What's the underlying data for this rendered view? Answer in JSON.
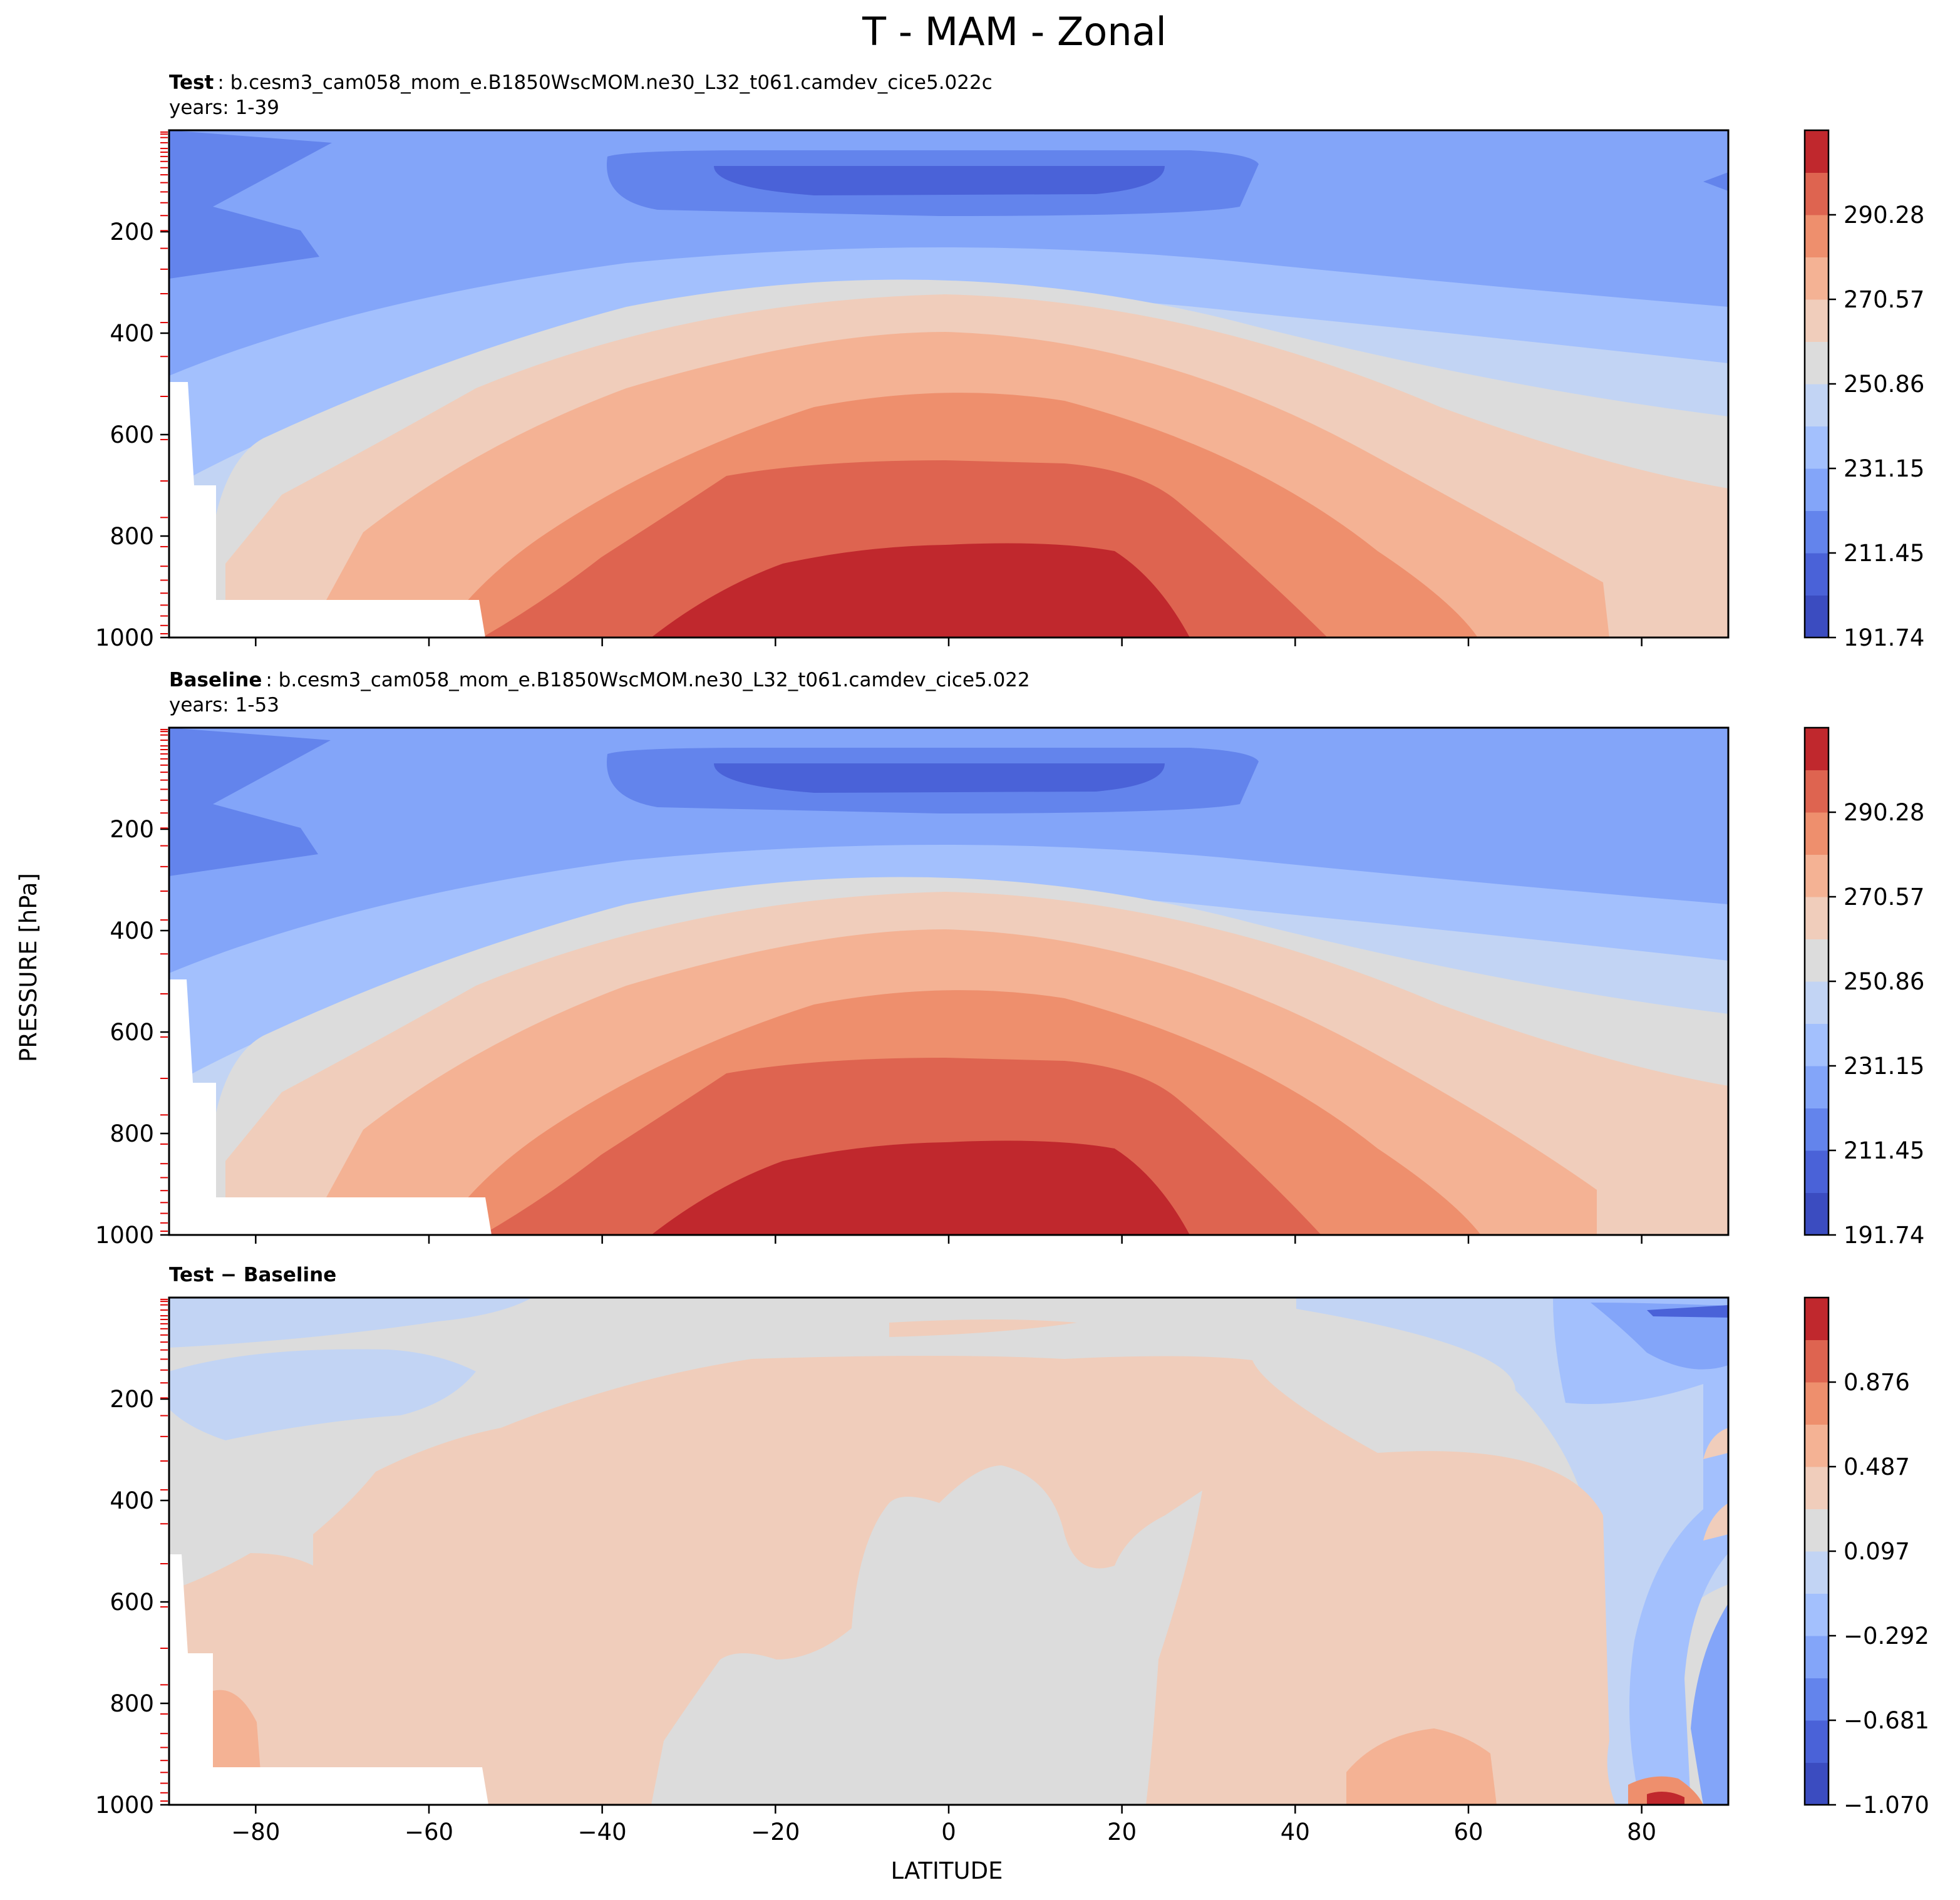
{
  "figure_title": "T - MAM - Zonal",
  "shared_ylabel": "PRESSURE [hPa]",
  "shared_xlabel": "LATITUDE",
  "chart_data": [
    {
      "type": "contour",
      "panel": "test",
      "label_bold": "Test",
      "label_text": ": b.cesm3_cam058_mom_e.B1850WscMOM.ne30_L32_t061.camdev_cice5.022c",
      "years": "years: 1-39",
      "xlim": [
        -90,
        90
      ],
      "ylim": [
        1000,
        0
      ],
      "xticks": [
        -80,
        -60,
        -40,
        -20,
        0,
        20,
        40,
        60,
        80
      ],
      "yticks": [
        200,
        400,
        600,
        800,
        1000
      ],
      "colorbar_ticks": [
        "191.74",
        "211.45",
        "231.15",
        "250.86",
        "270.57",
        "290.28"
      ],
      "colorbar_levels": 11,
      "colormap": [
        "#3b4cc0",
        "#4a62d8",
        "#6384ec",
        "#83a5f9",
        "#a3c0fd",
        "#c2d4f4",
        "#dcdcdc",
        "#f0cdbb",
        "#f4b294",
        "#ee8f6d",
        "#de6450",
        "#c0282d"
      ]
    },
    {
      "type": "contour",
      "panel": "baseline",
      "label_bold": "Baseline",
      "label_text": ": b.cesm3_cam058_mom_e.B1850WscMOM.ne30_L32_t061.camdev_cice5.022",
      "years": "years: 1-53",
      "xlim": [
        -90,
        90
      ],
      "ylim": [
        1000,
        0
      ],
      "xticks": [
        -80,
        -60,
        -40,
        -20,
        0,
        20,
        40,
        60,
        80
      ],
      "yticks": [
        200,
        400,
        600,
        800,
        1000
      ],
      "colorbar_ticks": [
        "191.74",
        "211.45",
        "231.15",
        "250.86",
        "270.57",
        "290.28"
      ],
      "colorbar_levels": 11
    },
    {
      "type": "contour",
      "panel": "difference",
      "label_bold": "Test − Baseline",
      "xlim": [
        -90,
        90
      ],
      "ylim": [
        1000,
        0
      ],
      "xticks": [
        -80,
        -60,
        -40,
        -20,
        0,
        20,
        40,
        60,
        80
      ],
      "xtick_labels": [
        "−80",
        "−60",
        "−40",
        "−20",
        "0",
        "20",
        "40",
        "60",
        "80"
      ],
      "yticks": [
        200,
        400,
        600,
        800,
        1000
      ],
      "colorbar_ticks": [
        "−1.070",
        "−0.681",
        "−0.292",
        "0.097",
        "0.487",
        "0.876"
      ],
      "colorbar_levels": 11
    }
  ]
}
